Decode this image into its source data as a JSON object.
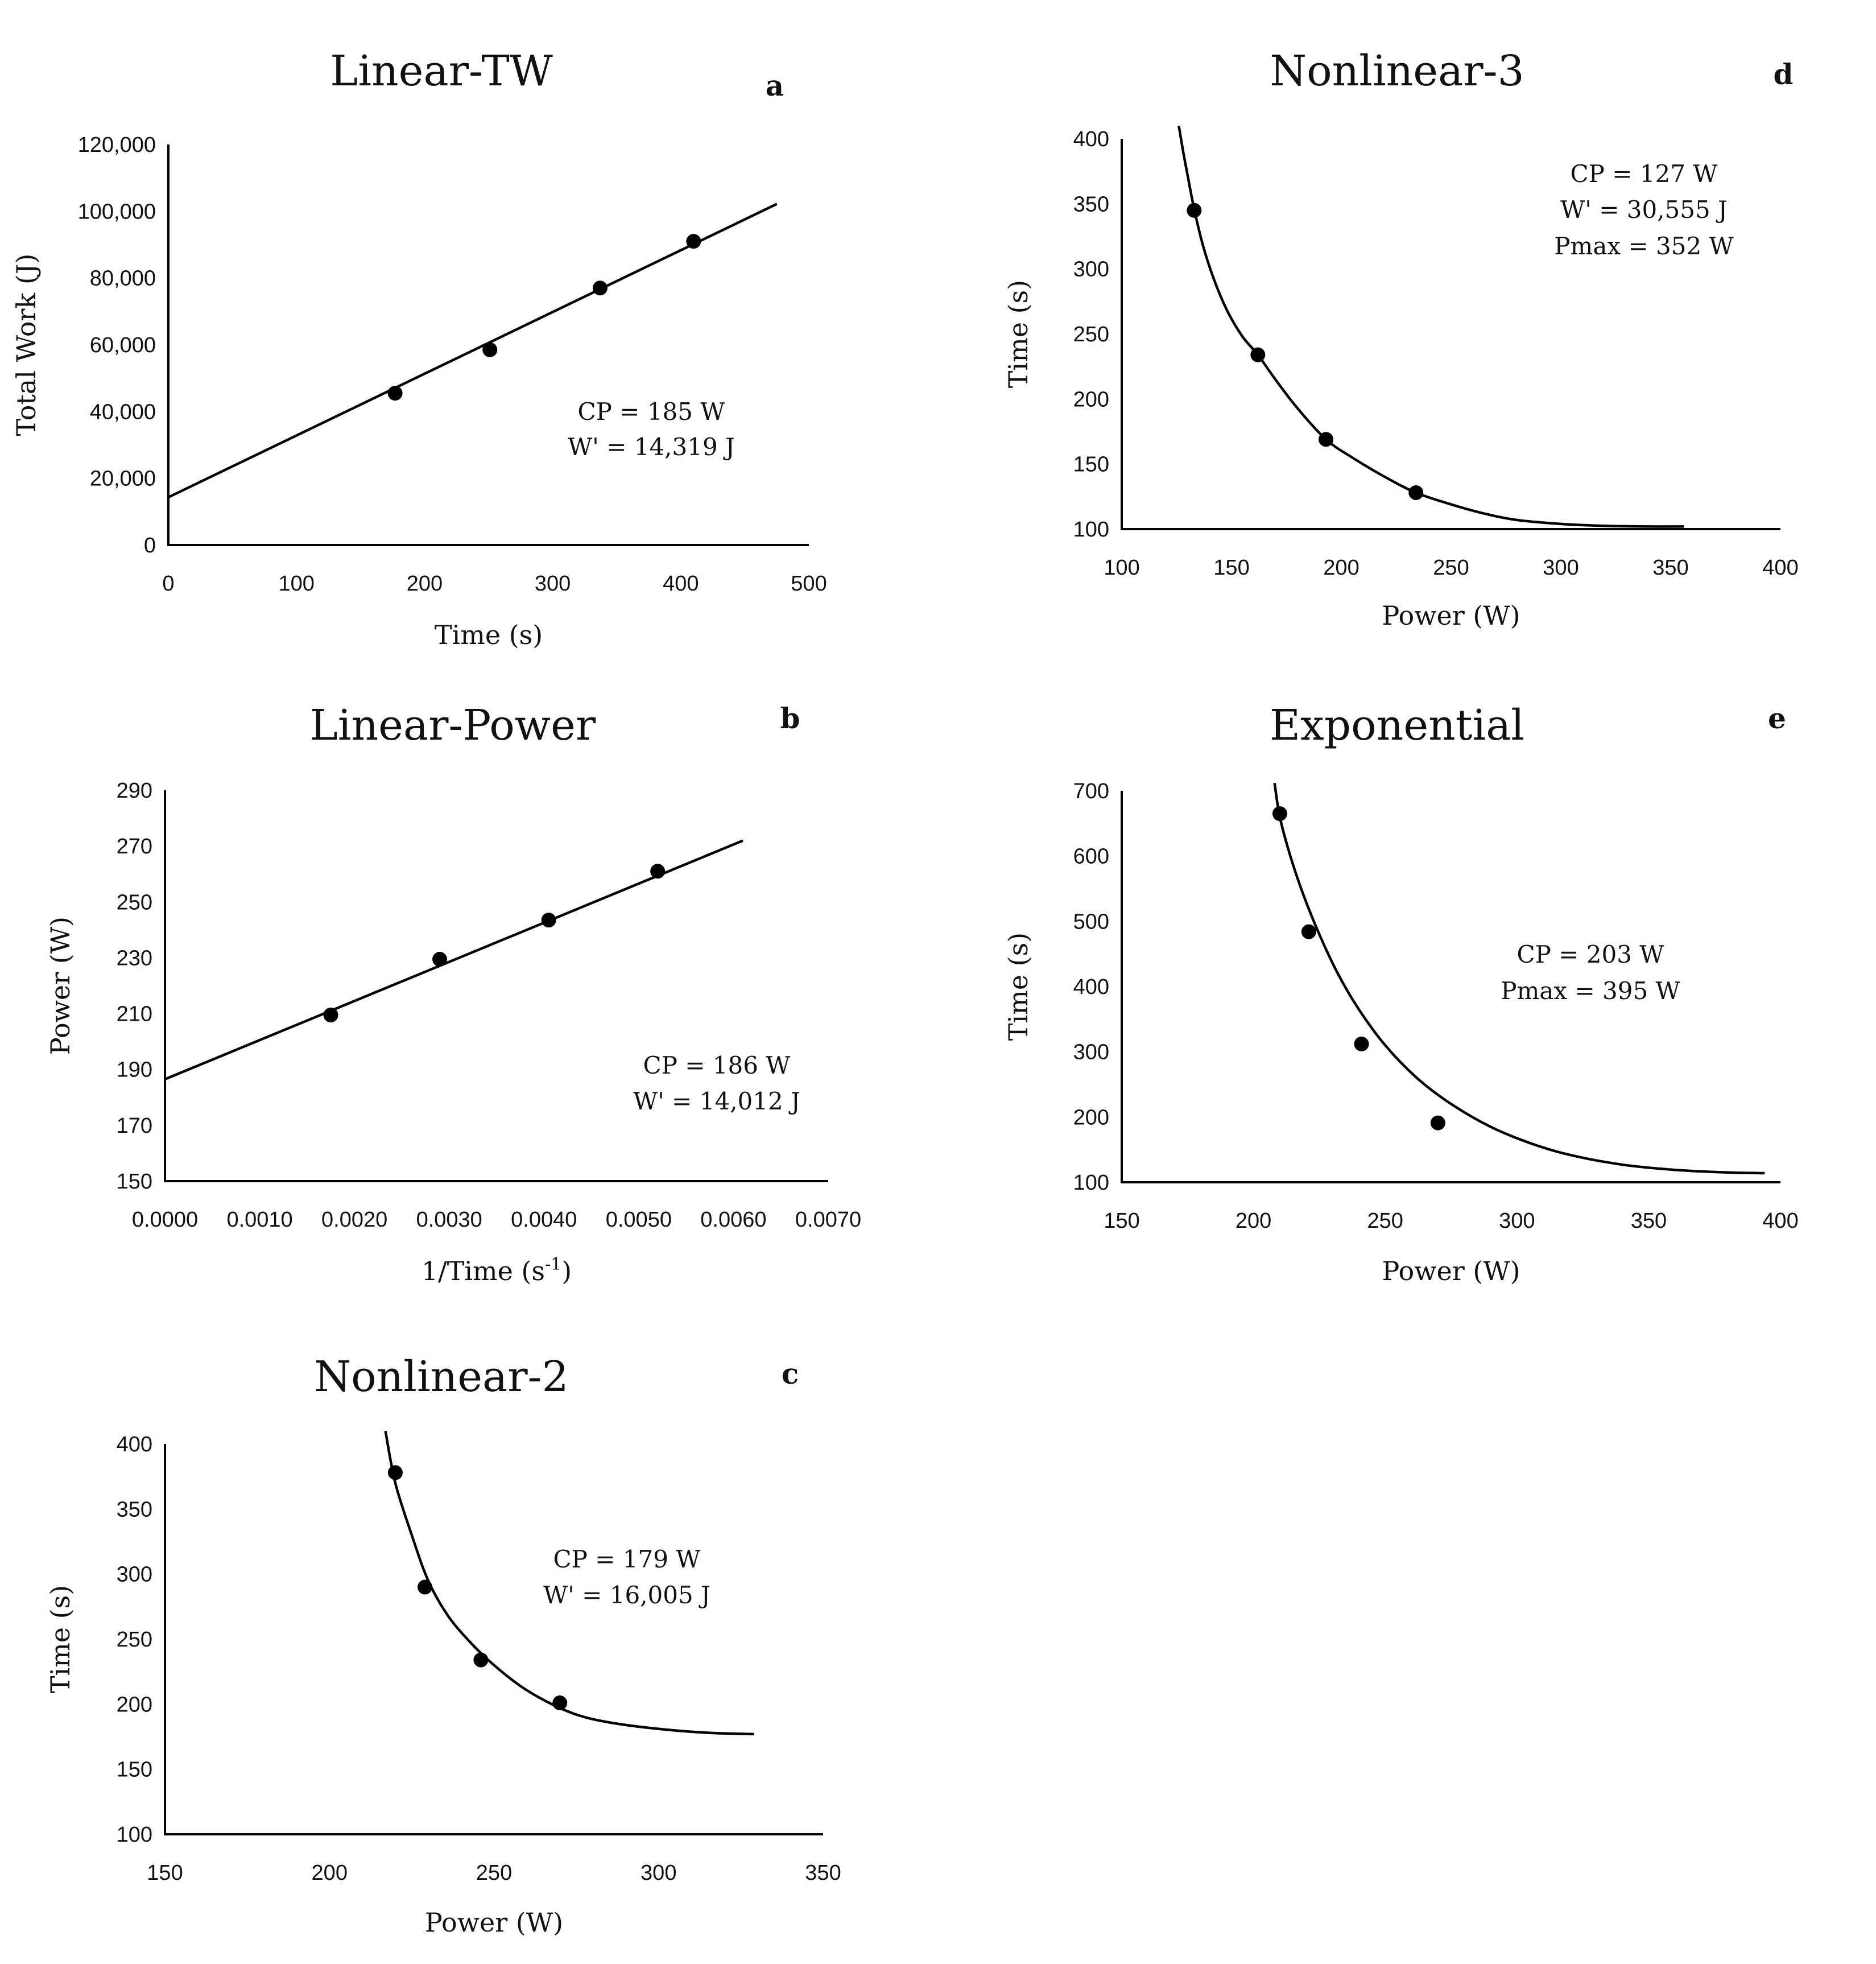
{
  "chart_data": [
    {
      "id": "a",
      "type": "scatter",
      "title": "Linear-TW",
      "panel_letter": "a",
      "xlabel": "Time (s)",
      "ylabel": "Total Work (J)",
      "xlim": [
        0,
        500
      ],
      "ylim": [
        0,
        120000
      ],
      "xticks": [
        0,
        100,
        200,
        300,
        400,
        500
      ],
      "yticks": [
        0,
        20000,
        40000,
        60000,
        80000,
        100000,
        120000
      ],
      "xtick_labels": [
        "0",
        "100",
        "200",
        "300",
        "400",
        "500"
      ],
      "ytick_labels": [
        "0",
        "20,000",
        "40,000",
        "60,000",
        "80,000",
        "100,000",
        "120,000"
      ],
      "points": [
        {
          "x": 177,
          "y": 45500
        },
        {
          "x": 251,
          "y": 58500
        },
        {
          "x": 337,
          "y": 77000
        },
        {
          "x": 410,
          "y": 91000
        }
      ],
      "fit": {
        "kind": "linear",
        "intercept": 14319,
        "slope": 185,
        "x_range": [
          0,
          475
        ]
      },
      "annotations": [
        "CP = 185 W",
        "W' = 14,319 J"
      ]
    },
    {
      "id": "b",
      "type": "scatter",
      "title": "Linear-Power",
      "panel_letter": "b",
      "xlabel": "1/Time (s",
      "xlabel_superscript": "-1",
      "xlabel_suffix": ")",
      "ylabel": "Power (W)",
      "xlim": [
        0,
        0.007
      ],
      "ylim": [
        150,
        290
      ],
      "xticks": [
        0,
        0.001,
        0.002,
        0.003,
        0.004,
        0.005,
        0.006,
        0.007
      ],
      "yticks": [
        150,
        170,
        190,
        210,
        230,
        250,
        270,
        290
      ],
      "xtick_labels": [
        "0.0000",
        "0.0010",
        "0.0020",
        "0.0030",
        "0.0040",
        "0.0050",
        "0.0060",
        "0.0070"
      ],
      "ytick_labels": [
        "150",
        "170",
        "190",
        "210",
        "230",
        "250",
        "270",
        "290"
      ],
      "points": [
        {
          "x": 0.00175,
          "y": 209.5
        },
        {
          "x": 0.0029,
          "y": 229.5
        },
        {
          "x": 0.00405,
          "y": 243.5
        },
        {
          "x": 0.0052,
          "y": 261
        }
      ],
      "fit": {
        "kind": "linear",
        "intercept": 186.5,
        "slope": 14012,
        "x_range": [
          0,
          0.0061
        ]
      },
      "annotations": [
        "CP = 186 W",
        "W' = 14,012 J"
      ]
    },
    {
      "id": "c",
      "type": "scatter",
      "title": "Nonlinear-2",
      "panel_letter": "c",
      "xlabel": "Power (W)",
      "ylabel": "Time (s)",
      "xlim": [
        150,
        350
      ],
      "ylim": [
        100,
        400
      ],
      "xticks": [
        150,
        200,
        250,
        300,
        350
      ],
      "yticks": [
        100,
        150,
        200,
        250,
        300,
        350,
        400
      ],
      "xtick_labels": [
        "150",
        "200",
        "250",
        "300",
        "350"
      ],
      "ytick_labels": [
        "100",
        "150",
        "200",
        "250",
        "300",
        "350",
        "400"
      ],
      "points": [
        {
          "x": 220,
          "y": 378
        },
        {
          "x": 229,
          "y": 290
        },
        {
          "x": 246,
          "y": 234
        },
        {
          "x": 270,
          "y": 201
        }
      ],
      "fit": {
        "kind": "curve",
        "curve": [
          [
            217,
            410
          ],
          [
            220,
            370
          ],
          [
            225,
            330
          ],
          [
            230,
            295
          ],
          [
            236,
            268
          ],
          [
            243,
            247
          ],
          [
            250,
            230
          ],
          [
            258,
            214
          ],
          [
            266,
            202
          ],
          [
            275,
            192
          ],
          [
            285,
            186
          ],
          [
            300,
            181
          ],
          [
            315,
            178
          ],
          [
            329,
            177
          ]
        ]
      },
      "annotations": [
        "CP = 179 W",
        "W' = 16,005 J"
      ]
    },
    {
      "id": "d",
      "type": "scatter",
      "title": "Nonlinear-3",
      "panel_letter": "d",
      "xlabel": "Power (W)",
      "ylabel": "Time (s)",
      "xlim": [
        100,
        400
      ],
      "ylim": [
        100,
        400
      ],
      "xticks": [
        100,
        150,
        200,
        250,
        300,
        350,
        400
      ],
      "yticks": [
        100,
        150,
        200,
        250,
        300,
        350,
        400
      ],
      "xtick_labels": [
        "100",
        "150",
        "200",
        "250",
        "300",
        "350",
        "400"
      ],
      "ytick_labels": [
        "100",
        "150",
        "200",
        "250",
        "300",
        "350",
        "400"
      ],
      "points": [
        {
          "x": 133,
          "y": 345
        },
        {
          "x": 162,
          "y": 234
        },
        {
          "x": 193,
          "y": 169
        },
        {
          "x": 234,
          "y": 128
        }
      ],
      "fit": {
        "kind": "curve",
        "curve": [
          [
            126,
            410
          ],
          [
            128,
            390
          ],
          [
            130,
            372
          ],
          [
            133,
            346
          ],
          [
            137,
            318
          ],
          [
            142,
            292
          ],
          [
            148,
            268
          ],
          [
            155,
            248
          ],
          [
            162,
            234
          ],
          [
            170,
            215
          ],
          [
            180,
            193
          ],
          [
            193,
            169
          ],
          [
            205,
            155
          ],
          [
            220,
            140
          ],
          [
            234,
            128
          ],
          [
            250,
            119
          ],
          [
            265,
            112
          ],
          [
            280,
            107
          ],
          [
            300,
            104
          ],
          [
            320,
            102.5
          ],
          [
            340,
            102
          ],
          [
            356,
            102
          ]
        ]
      },
      "annotations": [
        "CP = 127 W",
        "W' = 30,555 J",
        "Pmax = 352 W"
      ]
    },
    {
      "id": "e",
      "type": "scatter",
      "title": "Exponential",
      "panel_letter": "e",
      "xlabel": "Power (W)",
      "ylabel": "Time (s)",
      "xlim": [
        150,
        400
      ],
      "ylim": [
        100,
        700
      ],
      "xticks": [
        150,
        200,
        250,
        300,
        350,
        400
      ],
      "yticks": [
        100,
        200,
        300,
        400,
        500,
        600,
        700
      ],
      "xtick_labels": [
        "150",
        "200",
        "250",
        "300",
        "350",
        "400"
      ],
      "ytick_labels": [
        "100",
        "200",
        "300",
        "400",
        "500",
        "600",
        "700"
      ],
      "points": [
        {
          "x": 210,
          "y": 665
        },
        {
          "x": 221,
          "y": 484
        },
        {
          "x": 241,
          "y": 312
        },
        {
          "x": 270,
          "y": 191
        }
      ],
      "fit": {
        "kind": "curve",
        "curve": [
          [
            208,
            712
          ],
          [
            210,
            660
          ],
          [
            214,
            600
          ],
          [
            219,
            540
          ],
          [
            225,
            480
          ],
          [
            232,
            420
          ],
          [
            240,
            365
          ],
          [
            250,
            310
          ],
          [
            262,
            260
          ],
          [
            275,
            220
          ],
          [
            290,
            185
          ],
          [
            305,
            160
          ],
          [
            320,
            142
          ],
          [
            340,
            127
          ],
          [
            360,
            119
          ],
          [
            380,
            115
          ],
          [
            394,
            114
          ]
        ]
      },
      "annotations": [
        "CP = 203 W",
        "Pmax = 395 W"
      ]
    }
  ]
}
